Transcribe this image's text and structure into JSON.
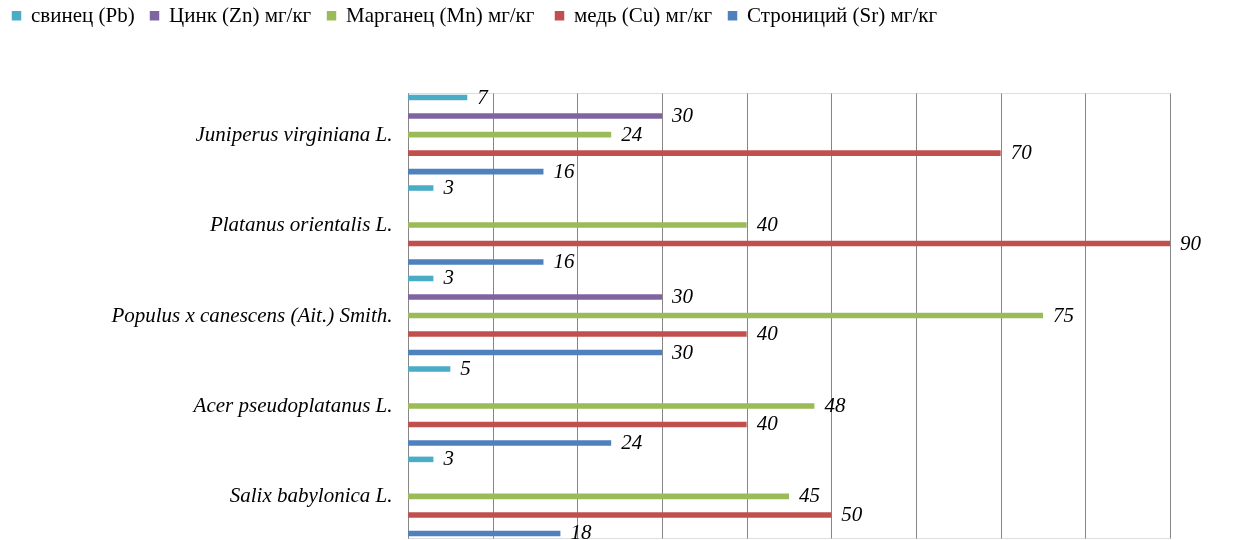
{
  "chart_data": {
    "type": "bar",
    "orientation": "horizontal",
    "categories": [
      "Juniperus virginiana L.",
      "Platanus orientalis L.",
      "Populus x canescens (Ait.) Smith.",
      "Acer pseudoplatanus L.",
      "Salix babylonica L."
    ],
    "series": [
      {
        "name": "свинец (Pb)",
        "color": "#4bacc6",
        "values": [
          7,
          3,
          3,
          5,
          3
        ]
      },
      {
        "name": "Цинк (Zn) мг/кг",
        "color": "#8064a2",
        "values": [
          30,
          null,
          30,
          null,
          null
        ]
      },
      {
        "name": "Марганец  (Mn) мг/кг",
        "color": "#9bbb59",
        "values": [
          24,
          40,
          75,
          48,
          45
        ]
      },
      {
        "name": "медь (Cu) мг/кг",
        "color": "#c0504d",
        "values": [
          70,
          90,
          40,
          40,
          50
        ]
      },
      {
        "name": "Строниций (Sr) мг/кг",
        "color": "#4f81bd",
        "values": [
          16,
          16,
          30,
          24,
          18
        ]
      }
    ],
    "xlim": [
      0,
      90
    ],
    "xticks": [
      {
        "value": 0,
        "label": null
      },
      {
        "value": 10,
        "label": null
      },
      {
        "value": 20,
        "label": null
      },
      {
        "value": 30,
        "label": null
      },
      {
        "value": 40,
        "label": null
      },
      {
        "value": 50,
        "label": null
      },
      {
        "value": 60,
        "label": null
      },
      {
        "value": 70,
        "label": null
      },
      {
        "value": 80,
        "label": null
      },
      {
        "value": 90,
        "label": null
      }
    ],
    "tick_labels": "y",
    "grid": "x",
    "legend": "top",
    "data_labels": true
  }
}
